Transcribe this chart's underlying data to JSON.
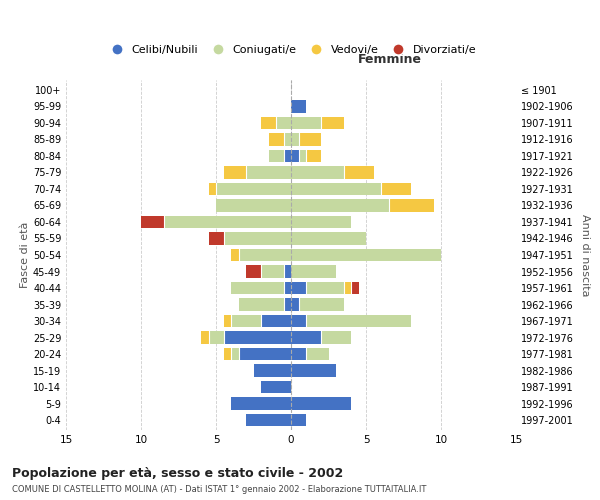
{
  "age_groups": [
    "0-4",
    "5-9",
    "10-14",
    "15-19",
    "20-24",
    "25-29",
    "30-34",
    "35-39",
    "40-44",
    "45-49",
    "50-54",
    "55-59",
    "60-64",
    "65-69",
    "70-74",
    "75-79",
    "80-84",
    "85-89",
    "90-94",
    "95-99",
    "100+"
  ],
  "birth_years": [
    "1997-2001",
    "1992-1996",
    "1987-1991",
    "1982-1986",
    "1977-1981",
    "1972-1976",
    "1967-1971",
    "1962-1966",
    "1957-1961",
    "1952-1956",
    "1947-1951",
    "1942-1946",
    "1937-1941",
    "1932-1936",
    "1927-1931",
    "1922-1926",
    "1917-1921",
    "1912-1916",
    "1907-1911",
    "1902-1906",
    "≤ 1901"
  ],
  "male": {
    "celibi": [
      3,
      4,
      2,
      2.5,
      3.5,
      4.5,
      2,
      0.5,
      0.5,
      0.5,
      0,
      0,
      0,
      0,
      0,
      0,
      0.5,
      0,
      0,
      0,
      0
    ],
    "coniugati": [
      0,
      0,
      0,
      0,
      0.5,
      1,
      2,
      3,
      3.5,
      1.5,
      3.5,
      4.5,
      8.5,
      5,
      5,
      3,
      1,
      0.5,
      1,
      0,
      0
    ],
    "vedovi": [
      0,
      0,
      0,
      0,
      0.5,
      0.5,
      0.5,
      0,
      0,
      0,
      0.5,
      0,
      0,
      0,
      0.5,
      1.5,
      0,
      1,
      1,
      0,
      0
    ],
    "divorziati": [
      0,
      0,
      0,
      0,
      0,
      0,
      0,
      0,
      0,
      1,
      0,
      1,
      1.5,
      0,
      0,
      0,
      0,
      0,
      0,
      0,
      0
    ]
  },
  "female": {
    "nubili": [
      1,
      4,
      0,
      3,
      1,
      2,
      1,
      0.5,
      1,
      0,
      0,
      0,
      0,
      0,
      0,
      0,
      0.5,
      0,
      0,
      1,
      0
    ],
    "coniugate": [
      0,
      0,
      0,
      0,
      1.5,
      2,
      7,
      3,
      2.5,
      3,
      10,
      5,
      4,
      6.5,
      6,
      3.5,
      0.5,
      0.5,
      2,
      0,
      0
    ],
    "vedove": [
      0,
      0,
      0,
      0,
      0,
      0,
      0,
      0,
      0.5,
      0,
      0,
      0,
      0,
      3,
      2,
      2,
      1,
      1.5,
      1.5,
      0,
      0
    ],
    "divorziate": [
      0,
      0,
      0,
      0,
      0,
      0,
      0,
      0,
      0.5,
      0,
      0,
      0,
      0,
      0,
      0,
      0,
      0,
      0,
      0,
      0,
      0
    ]
  },
  "colors": {
    "celibi": "#4472C4",
    "coniugati": "#C5D9A0",
    "vedovi": "#F5C842",
    "divorziati": "#C0392B"
  },
  "title": "Popolazione per età, sesso e stato civile - 2002",
  "subtitle": "COMUNE DI CASTELLETTO MOLINA (AT) - Dati ISTAT 1° gennaio 2002 - Elaborazione TUTTAITALIA.IT",
  "xlabel_right": "Femmine",
  "ylabel_left": "Fasce di età",
  "ylabel_right": "Anni di nascita",
  "xlim": 15,
  "background_color": "#ffffff",
  "grid_color": "#cccccc",
  "legend_labels": [
    "Celibi/Nubili",
    "Coniugati/e",
    "Vedovi/e",
    "Divorziati/e"
  ]
}
